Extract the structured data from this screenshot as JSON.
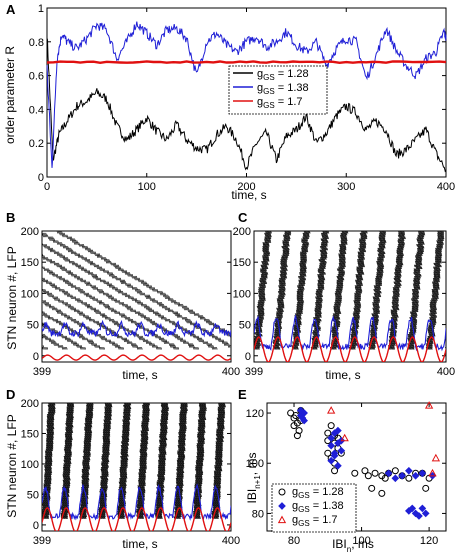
{
  "chart_data": [
    {
      "panel": "A",
      "type": "line",
      "xlabel": "time, s",
      "ylabel": "order parameter R",
      "xlim": [
        0,
        400
      ],
      "ylim": [
        0,
        1
      ],
      "xticks": [
        0,
        100,
        200,
        300,
        400
      ],
      "yticks": [
        0,
        0.2,
        0.4,
        0.6,
        0.8,
        1
      ],
      "ytick_labels": [
        "0",
        "0.2",
        "0.4",
        "0.6",
        "0.8",
        "1"
      ],
      "legend": {
        "placement": "center-right",
        "entries": [
          {
            "label": "g",
            "sub": "GS",
            "value": " = 1.28",
            "color": "#000000"
          },
          {
            "label": "g",
            "sub": "GS",
            "value": " = 1.38",
            "color": "#1f1fd6"
          },
          {
            "label": "g",
            "sub": "GS",
            "value": " = 1.7",
            "color": "#e01010"
          }
        ]
      },
      "series": [
        {
          "color": "#000000",
          "x": [
            0,
            6,
            12,
            20,
            30,
            40,
            50,
            60,
            70,
            80,
            90,
            100,
            110,
            120,
            130,
            140,
            150,
            160,
            170,
            180,
            190,
            200,
            210,
            220,
            230,
            240,
            250,
            260,
            270,
            280,
            290,
            300,
            310,
            320,
            330,
            340,
            350,
            360,
            370,
            380,
            390,
            400
          ],
          "y": [
            0.85,
            0.1,
            0.25,
            0.33,
            0.42,
            0.45,
            0.5,
            0.46,
            0.3,
            0.22,
            0.28,
            0.35,
            0.27,
            0.22,
            0.31,
            0.22,
            0.17,
            0.16,
            0.25,
            0.3,
            0.22,
            0.06,
            0.2,
            0.26,
            0.1,
            0.24,
            0.28,
            0.36,
            0.2,
            0.26,
            0.36,
            0.42,
            0.38,
            0.28,
            0.33,
            0.28,
            0.13,
            0.16,
            0.22,
            0.28,
            0.14,
            0.04
          ]
        },
        {
          "color": "#1f1fd6",
          "x": [
            0,
            5,
            10,
            15,
            20,
            30,
            40,
            50,
            60,
            70,
            80,
            90,
            100,
            110,
            120,
            130,
            140,
            150,
            160,
            170,
            180,
            190,
            200,
            210,
            220,
            230,
            240,
            250,
            260,
            270,
            280,
            290,
            300,
            310,
            320,
            330,
            340,
            350,
            360,
            370,
            380,
            390,
            398,
            400
          ],
          "y": [
            0.65,
            0.05,
            0.7,
            0.85,
            0.8,
            0.76,
            0.82,
            0.9,
            0.87,
            0.7,
            0.8,
            0.91,
            0.85,
            0.78,
            0.87,
            0.88,
            0.82,
            0.6,
            0.8,
            0.85,
            0.78,
            0.74,
            0.8,
            0.83,
            0.77,
            0.8,
            0.86,
            0.78,
            0.74,
            0.8,
            0.66,
            0.76,
            0.82,
            0.8,
            0.58,
            0.72,
            0.88,
            0.75,
            0.66,
            0.6,
            0.7,
            0.74,
            0.86,
            0.82
          ]
        },
        {
          "color": "#e01010",
          "x": [
            0,
            400
          ],
          "y": [
            0.68,
            0.68
          ]
        }
      ]
    },
    {
      "panel": "B",
      "type": "raster",
      "xlabel": "time, s",
      "ylabel": "STN neuron #, LFP",
      "xlim": [
        399,
        400
      ],
      "ylim": [
        -10,
        200
      ],
      "xticks": [
        399,
        400
      ],
      "yticks": [
        0,
        50,
        100,
        150,
        200
      ]
    },
    {
      "panel": "C",
      "type": "raster",
      "xlabel": "time, s",
      "xlim": [
        399,
        400
      ],
      "ylim": [
        -10,
        200
      ],
      "xticks": [
        399,
        400
      ],
      "yticks": [
        0,
        50,
        100,
        150,
        200
      ]
    },
    {
      "panel": "D",
      "type": "raster",
      "xlabel": "time, s",
      "ylabel": "STN neuron #, LFP",
      "xlim": [
        399,
        400
      ],
      "ylim": [
        -10,
        200
      ],
      "xticks": [
        399,
        400
      ],
      "yticks": [
        0,
        50,
        100,
        150,
        200
      ]
    },
    {
      "panel": "E",
      "type": "scatter",
      "xlabel": "IBI",
      "xlabel_sub": "n",
      "xlabel_unit": ", ms",
      "ylabel": "IBI",
      "ylabel_sub": "n+1",
      "ylabel_unit": ", ms",
      "xlim": [
        72,
        125
      ],
      "ylim": [
        73,
        124
      ],
      "xticks": [
        80,
        100,
        120
      ],
      "yticks": [
        80,
        100,
        120
      ],
      "legend": {
        "placement": "bottom-left",
        "entries": [
          {
            "label": "g",
            "sub": "GS",
            "value": " = 1.28",
            "color": "#000000",
            "marker": "circle"
          },
          {
            "label": "g",
            "sub": "GS",
            "value": " = 1.38",
            "color": "#1f1fd6",
            "marker": "diamond"
          },
          {
            "label": "g",
            "sub": "GS",
            "value": " = 1.7",
            "color": "#e01010",
            "marker": "triangle"
          }
        ]
      },
      "series": [
        {
          "color": "#000000",
          "marker": "circle",
          "points": [
            [
              80,
              118
            ],
            [
              81,
              116
            ],
            [
              80.5,
              119
            ],
            [
              81.5,
              113
            ],
            [
              82,
              117
            ],
            [
              80,
              115
            ],
            [
              82,
              121
            ],
            [
              79,
              120
            ],
            [
              81,
              111
            ],
            [
              90,
              104
            ],
            [
              92,
              108
            ],
            [
              91,
              102
            ],
            [
              93,
              110
            ],
            [
              90,
              112
            ],
            [
              92,
              100
            ],
            [
              94,
              104
            ],
            [
              91,
              115
            ],
            [
              92,
              97
            ],
            [
              93,
              106
            ],
            [
              90,
              109
            ],
            [
              92,
              111
            ],
            [
              98,
              96
            ],
            [
              102,
              95
            ],
            [
              108,
              96
            ],
            [
              112,
              95
            ],
            [
              116,
              96
            ],
            [
              101,
              97
            ],
            [
              106,
              95
            ],
            [
              114,
              94
            ],
            [
              104,
              96
            ],
            [
              110,
              97
            ],
            [
              103,
              90
            ],
            [
              106,
              88
            ],
            [
              118,
              96
            ],
            [
              120,
              94
            ],
            [
              107,
              94
            ],
            [
              119,
              90
            ]
          ]
        },
        {
          "color": "#1f1fd6",
          "marker": "diamond",
          "points": [
            [
              82,
              119
            ],
            [
              83,
              120
            ],
            [
              82.5,
              118
            ],
            [
              83,
              117
            ],
            [
              82,
              121
            ],
            [
              91,
              110
            ],
            [
              92,
              112
            ],
            [
              93,
              108
            ],
            [
              94,
              105
            ],
            [
              91,
              101
            ],
            [
              93,
              113
            ],
            [
              92,
              104
            ],
            [
              94,
              109
            ],
            [
              91,
              107
            ],
            [
              93,
              99
            ],
            [
              92,
              103
            ],
            [
              108,
              96
            ],
            [
              112,
              95
            ],
            [
              114,
              97
            ],
            [
              118,
              96
            ],
            [
              121,
              95
            ],
            [
              110,
              94
            ],
            [
              116,
              95
            ],
            [
              114,
              81
            ],
            [
              116,
              80
            ],
            [
              118,
              82
            ],
            [
              117,
              79
            ],
            [
              119,
              80
            ],
            [
              115,
              82
            ]
          ]
        },
        {
          "color": "#e01010",
          "marker": "triangle",
          "points": [
            [
              91,
              121
            ],
            [
              95,
              110
            ],
            [
              122,
              102
            ],
            [
              120,
              123
            ],
            [
              121,
              96
            ]
          ]
        }
      ]
    }
  ]
}
